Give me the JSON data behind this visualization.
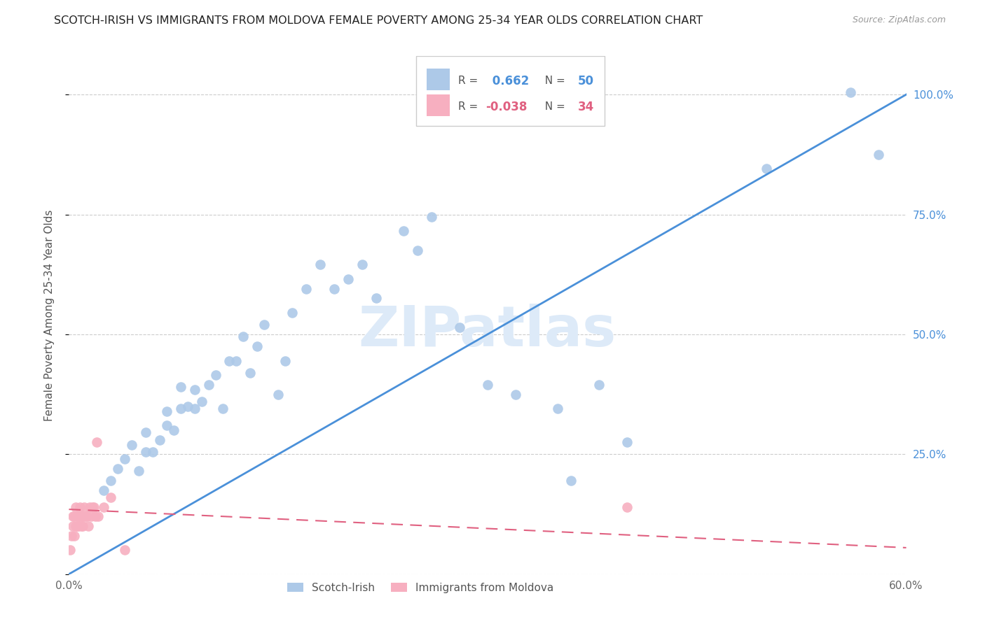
{
  "title": "SCOTCH-IRISH VS IMMIGRANTS FROM MOLDOVA FEMALE POVERTY AMONG 25-34 YEAR OLDS CORRELATION CHART",
  "source": "Source: ZipAtlas.com",
  "ylabel": "Female Poverty Among 25-34 Year Olds",
  "xlim": [
    0.0,
    0.6
  ],
  "ylim": [
    0.0,
    1.08
  ],
  "blue_R": 0.662,
  "blue_N": 50,
  "pink_R": -0.038,
  "pink_N": 34,
  "blue_color": "#adc9e8",
  "blue_line_color": "#4a90d9",
  "pink_color": "#f7afc0",
  "pink_line_color": "#e06080",
  "watermark": "ZIPatlas",
  "watermark_color": "#ddeaf8",
  "background_color": "#ffffff",
  "grid_color": "#cccccc",
  "title_color": "#222222",
  "right_axis_color": "#4a90d9",
  "blue_scatter_x": [
    0.025,
    0.03,
    0.035,
    0.04,
    0.045,
    0.05,
    0.055,
    0.055,
    0.06,
    0.065,
    0.07,
    0.07,
    0.075,
    0.08,
    0.08,
    0.085,
    0.09,
    0.09,
    0.095,
    0.1,
    0.105,
    0.11,
    0.115,
    0.12,
    0.125,
    0.13,
    0.135,
    0.14,
    0.15,
    0.155,
    0.16,
    0.17,
    0.18,
    0.19,
    0.2,
    0.21,
    0.22,
    0.24,
    0.25,
    0.26,
    0.28,
    0.3,
    0.32,
    0.35,
    0.36,
    0.38,
    0.4,
    0.5,
    0.56,
    0.58
  ],
  "blue_scatter_y": [
    0.175,
    0.195,
    0.22,
    0.24,
    0.27,
    0.215,
    0.255,
    0.295,
    0.255,
    0.28,
    0.31,
    0.34,
    0.3,
    0.345,
    0.39,
    0.35,
    0.345,
    0.385,
    0.36,
    0.395,
    0.415,
    0.345,
    0.445,
    0.445,
    0.495,
    0.42,
    0.475,
    0.52,
    0.375,
    0.445,
    0.545,
    0.595,
    0.645,
    0.595,
    0.615,
    0.645,
    0.575,
    0.715,
    0.675,
    0.745,
    0.515,
    0.395,
    0.375,
    0.345,
    0.195,
    0.395,
    0.275,
    0.845,
    1.005,
    0.875
  ],
  "pink_scatter_x": [
    0.001,
    0.002,
    0.003,
    0.003,
    0.004,
    0.004,
    0.005,
    0.005,
    0.006,
    0.006,
    0.007,
    0.007,
    0.008,
    0.008,
    0.009,
    0.009,
    0.01,
    0.01,
    0.011,
    0.011,
    0.012,
    0.013,
    0.014,
    0.015,
    0.016,
    0.017,
    0.018,
    0.019,
    0.02,
    0.021,
    0.025,
    0.03,
    0.04,
    0.4
  ],
  "pink_scatter_y": [
    0.05,
    0.08,
    0.1,
    0.12,
    0.08,
    0.12,
    0.1,
    0.14,
    0.1,
    0.12,
    0.1,
    0.12,
    0.12,
    0.14,
    0.1,
    0.12,
    0.1,
    0.12,
    0.12,
    0.14,
    0.12,
    0.12,
    0.1,
    0.14,
    0.12,
    0.14,
    0.14,
    0.12,
    0.275,
    0.12,
    0.14,
    0.16,
    0.05,
    0.14
  ]
}
